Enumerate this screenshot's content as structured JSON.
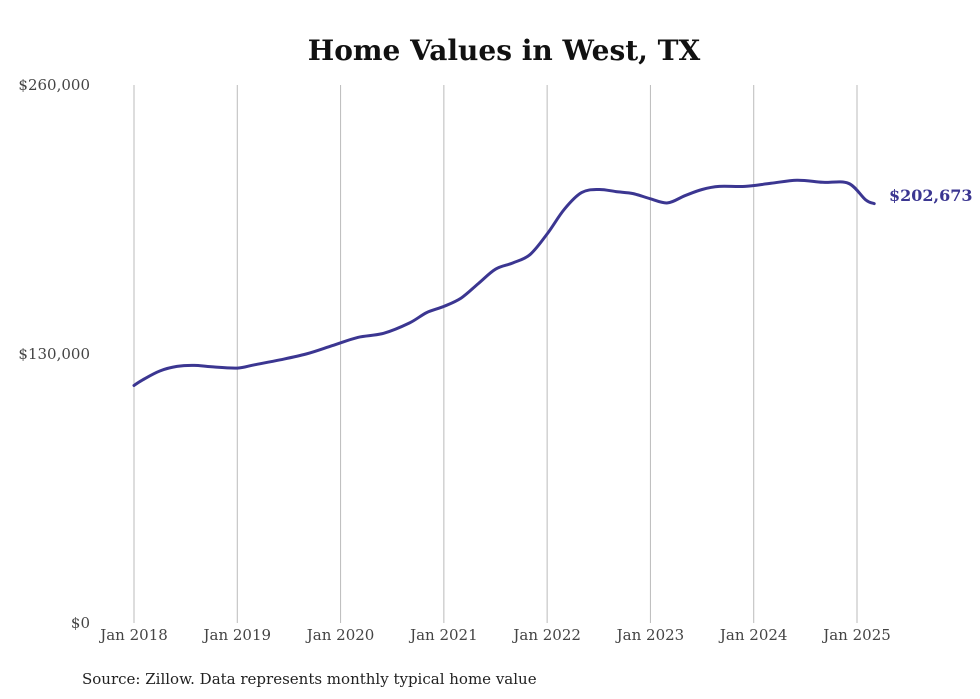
{
  "chart_data": {
    "type": "line",
    "title": "Home Values in West, TX",
    "xlabel": "",
    "ylabel": "",
    "ylim": [
      0,
      260000
    ],
    "y_ticks": [
      {
        "value": 0,
        "label": "$0"
      },
      {
        "value": 130000,
        "label": "$130,000"
      },
      {
        "value": 260000,
        "label": "$260,000"
      }
    ],
    "x_ticks": [
      {
        "date": "2018-01",
        "label": "Jan 2018"
      },
      {
        "date": "2019-01",
        "label": "Jan 2019"
      },
      {
        "date": "2020-01",
        "label": "Jan 2020"
      },
      {
        "date": "2021-01",
        "label": "Jan 2021"
      },
      {
        "date": "2022-01",
        "label": "Jan 2022"
      },
      {
        "date": "2023-01",
        "label": "Jan 2023"
      },
      {
        "date": "2024-01",
        "label": "Jan 2024"
      },
      {
        "date": "2025-01",
        "label": "Jan 2025"
      }
    ],
    "grid": "vertical",
    "series": [
      {
        "color": "#3b3691",
        "points": [
          [
            "2018-01",
            114800
          ],
          [
            "2018-02",
            117500
          ],
          [
            "2018-04",
            121800
          ],
          [
            "2018-06",
            124000
          ],
          [
            "2018-08",
            124500
          ],
          [
            "2018-10",
            123800
          ],
          [
            "2019-01",
            123200
          ],
          [
            "2019-03",
            124800
          ],
          [
            "2019-06",
            127200
          ],
          [
            "2019-09",
            130000
          ],
          [
            "2019-12",
            134000
          ],
          [
            "2020-03",
            138000
          ],
          [
            "2020-06",
            140000
          ],
          [
            "2020-09",
            145000
          ],
          [
            "2020-11",
            150000
          ],
          [
            "2021-01",
            153000
          ],
          [
            "2021-03",
            157000
          ],
          [
            "2021-05",
            164000
          ],
          [
            "2021-07",
            171000
          ],
          [
            "2021-09",
            174000
          ],
          [
            "2021-11",
            178000
          ],
          [
            "2022-01",
            188000
          ],
          [
            "2022-03",
            200000
          ],
          [
            "2022-05",
            208000
          ],
          [
            "2022-07",
            209500
          ],
          [
            "2022-09",
            208500
          ],
          [
            "2022-11",
            207500
          ],
          [
            "2023-01",
            205000
          ],
          [
            "2023-03",
            203000
          ],
          [
            "2023-05",
            206500
          ],
          [
            "2023-07",
            209500
          ],
          [
            "2023-09",
            211000
          ],
          [
            "2023-12",
            211000
          ],
          [
            "2024-03",
            212500
          ],
          [
            "2024-06",
            214000
          ],
          [
            "2024-09",
            213000
          ],
          [
            "2024-12",
            212500
          ],
          [
            "2025-02",
            204500
          ],
          [
            "2025-03",
            202673
          ]
        ]
      }
    ],
    "end_label": "$202,673",
    "source": "Source: Zillow. Data represents monthly typical home value"
  }
}
